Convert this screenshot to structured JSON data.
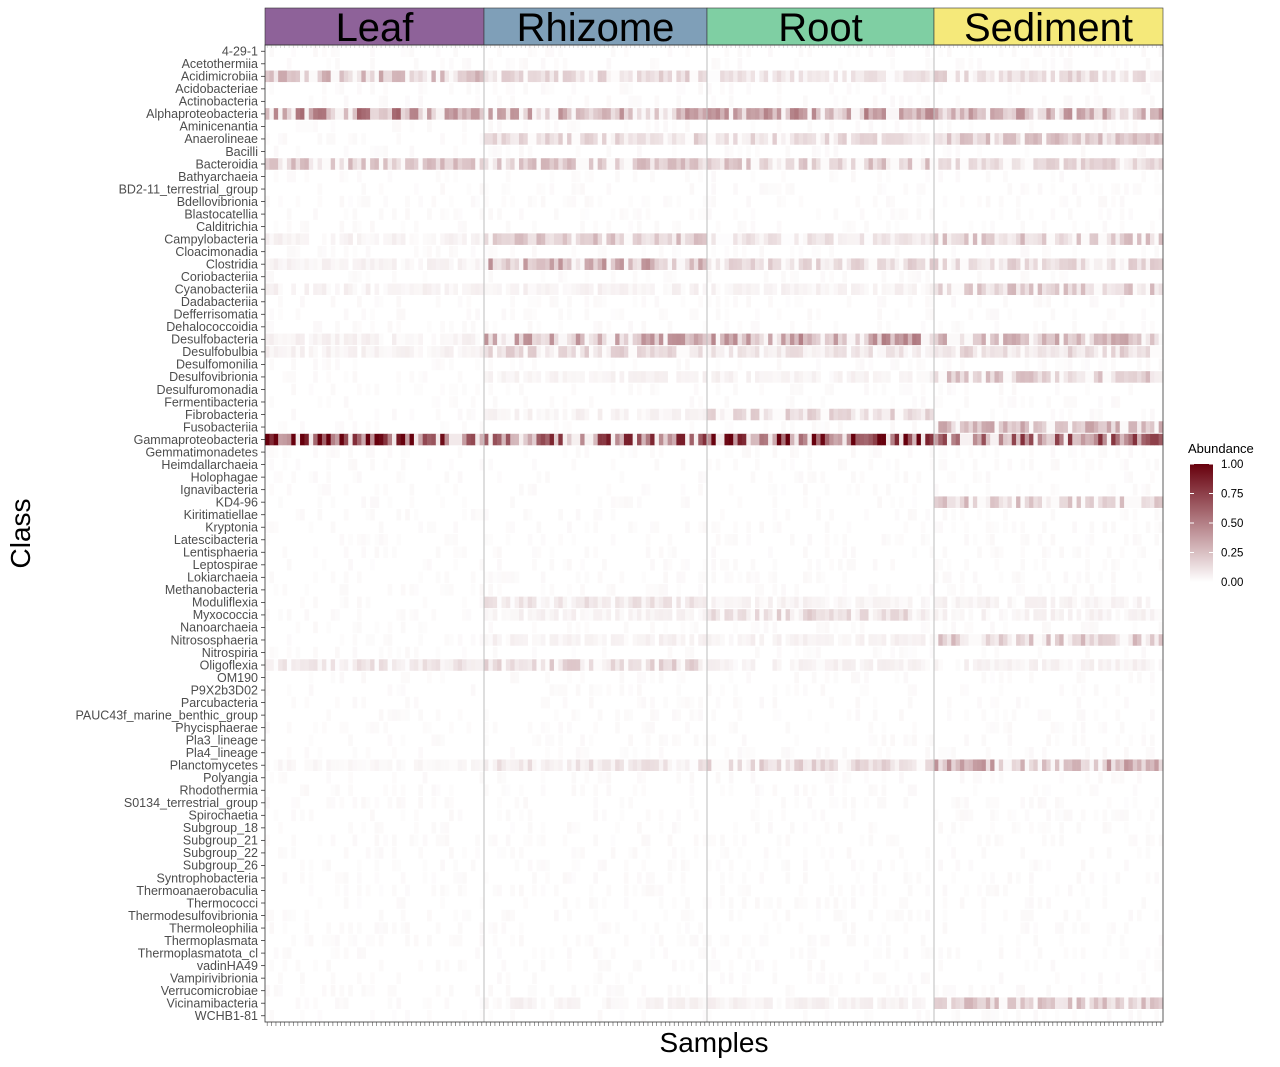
{
  "chart_data": {
    "type": "heatmap",
    "xlabel": "Samples",
    "ylabel": "Class",
    "legend": {
      "title": "Abundance",
      "ticks": [
        "1.00",
        "0.75",
        "0.50",
        "0.25",
        "0.00"
      ],
      "range": [
        0,
        1
      ],
      "low_color": "#ffffff",
      "high_color": "#67000d",
      "placement": "right"
    },
    "facets": [
      {
        "name": "Leaf",
        "color": "#8e6299",
        "sample_count": 50
      },
      {
        "name": "Rhizome",
        "color": "#7f9fb8",
        "sample_count": 51
      },
      {
        "name": "Root",
        "color": "#7fcfa3",
        "sample_count": 52
      },
      {
        "name": "Sediment",
        "color": "#f5e97a",
        "sample_count": 53
      }
    ],
    "classes": [
      "4-29-1",
      "Acetothermiia",
      "Acidimicrobiia",
      "Acidobacteriae",
      "Actinobacteria",
      "Alphaproteobacteria",
      "Aminicenantia",
      "Anaerolineae",
      "Bacilli",
      "Bacteroidia",
      "Bathyarchaeia",
      "BD2-11_terrestrial_group",
      "Bdellovibrionia",
      "Blastocatellia",
      "Calditrichia",
      "Campylobacteria",
      "Cloacimonadia",
      "Clostridia",
      "Coriobacteriia",
      "Cyanobacteriia",
      "Dadabacteriia",
      "Defferrisomatia",
      "Dehalococcoidia",
      "Desulfobacteria",
      "Desulfobulbia",
      "Desulfomonilia",
      "Desulfovibrionia",
      "Desulfuromonadia",
      "Fermentibacteria",
      "Fibrobacteria",
      "Fusobacteriia",
      "Gammaproteobacteria",
      "Gemmatimonadetes",
      "Heimdallarchaeia",
      "Holophagae",
      "Ignavibacteria",
      "KD4-96",
      "Kiritimatiellae",
      "Kryptonia",
      "Latescibacteria",
      "Lentisphaeria",
      "Leptospirae",
      "Lokiarchaeia",
      "Methanobacteria",
      "Moduliflexia",
      "Myxococcia",
      "Nanoarchaeia",
      "Nitrososphaeria",
      "Nitrospiria",
      "Oligoflexia",
      "OM190",
      "P9X2b3D02",
      "Parcubacteria",
      "PAUC43f_marine_benthic_group",
      "Phycisphaerae",
      "Pla3_lineage",
      "Pla4_lineage",
      "Planctomycetes",
      "Polyangia",
      "Rhodothermia",
      "S0134_terrestrial_group",
      "Spirochaetia",
      "Subgroup_18",
      "Subgroup_21",
      "Subgroup_22",
      "Subgroup_26",
      "Syntrophobacteria",
      "Thermoanaerobaculia",
      "Thermococci",
      "Thermodesulfovibrionia",
      "Thermoleophilia",
      "Thermoplasmata",
      "Thermoplasmatota_cl",
      "vadinHA49",
      "Vampirivibrionia",
      "Verrucomicrobiae",
      "Vicinamibacteria",
      "WCHB1-81"
    ],
    "class_abundance_by_facet": {
      "Gammaproteobacteria": [
        0.85,
        0.6,
        0.85,
        0.55
      ],
      "Alphaproteobacteria": [
        0.45,
        0.3,
        0.35,
        0.3
      ],
      "Acidimicrobiia": [
        0.25,
        0.15,
        0.1,
        0.15
      ],
      "Bacteroidia": [
        0.2,
        0.2,
        0.2,
        0.15
      ],
      "Desulfobacteria": [
        0.05,
        0.3,
        0.35,
        0.25
      ],
      "Clostridia": [
        0.05,
        0.3,
        0.15,
        0.15
      ],
      "Campylobacteria": [
        0.05,
        0.2,
        0.1,
        0.2
      ],
      "Anaerolineae": [
        0.02,
        0.15,
        0.15,
        0.2
      ],
      "Desulfobulbia": [
        0.05,
        0.15,
        0.1,
        0.15
      ],
      "Planctomycetes": [
        0.03,
        0.1,
        0.15,
        0.3
      ],
      "Cyanobacteriia": [
        0.05,
        0.05,
        0.05,
        0.2
      ],
      "Oligoflexia": [
        0.1,
        0.15,
        0.05,
        0.05
      ],
      "Myxococcia": [
        0.0,
        0.05,
        0.15,
        0.05
      ],
      "Fibrobacteria": [
        0.0,
        0.05,
        0.15,
        0.0
      ],
      "Fusobacteriia": [
        0.0,
        0.0,
        0.0,
        0.25
      ],
      "Desulfovibrionia": [
        0.0,
        0.05,
        0.05,
        0.2
      ],
      "Nitrososphaeria": [
        0.0,
        0.05,
        0.05,
        0.2
      ],
      "Vicinamibacteria": [
        0.0,
        0.05,
        0.05,
        0.2
      ],
      "KD4-96": [
        0.0,
        0.02,
        0.02,
        0.2
      ],
      "Moduliflexia": [
        0.0,
        0.1,
        0.05,
        0.05
      ]
    }
  }
}
